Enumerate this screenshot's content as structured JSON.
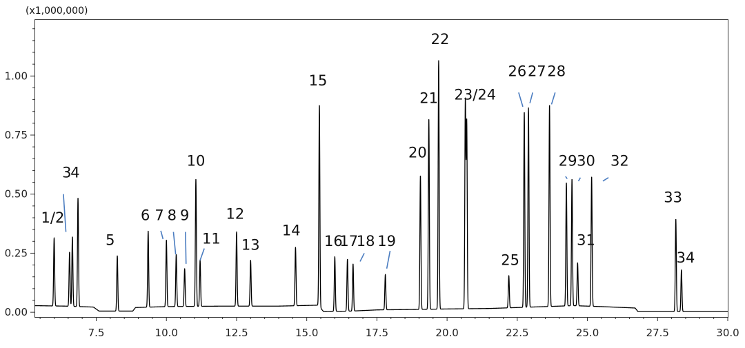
{
  "chart_data": {
    "type": "line",
    "y_multiplier_label": "(x1,000,000)",
    "xlim": [
      5.3,
      30.0
    ],
    "ylim": [
      -0.02,
      1.24
    ],
    "x_ticks": [
      7.5,
      10.0,
      12.5,
      15.0,
      17.5,
      20.0,
      22.5,
      25.0,
      27.5,
      30.0
    ],
    "x_tick_labels": [
      "7.5",
      "10.0",
      "12.5",
      "15.0",
      "17.5",
      "20.0",
      "22.5",
      "25.0",
      "27.5",
      "30.0"
    ],
    "y_ticks": [
      0.0,
      0.25,
      0.5,
      0.75,
      1.0
    ],
    "y_tick_labels": [
      "0.00",
      "0.25",
      "0.50",
      "0.75",
      "1.00"
    ],
    "grid": false,
    "line_color": "#000000",
    "annotation_color": "#4a7cc0",
    "baseline": [
      [
        5.3,
        0.028
      ],
      [
        6.4,
        0.026
      ],
      [
        7.4,
        0.022
      ],
      [
        7.6,
        0.005
      ],
      [
        8.8,
        0.005
      ],
      [
        8.9,
        0.02
      ],
      [
        10.0,
        0.024
      ],
      [
        12.0,
        0.026
      ],
      [
        14.0,
        0.026
      ],
      [
        15.4,
        0.03
      ],
      [
        15.6,
        0.003
      ],
      [
        16.6,
        0.005
      ],
      [
        17.5,
        0.01
      ],
      [
        18.9,
        0.012
      ],
      [
        20.0,
        0.014
      ],
      [
        21.5,
        0.016
      ],
      [
        23.0,
        0.022
      ],
      [
        24.5,
        0.028
      ],
      [
        25.5,
        0.024
      ],
      [
        26.7,
        0.018
      ],
      [
        26.8,
        0.003
      ],
      [
        30.0,
        0.003
      ]
    ],
    "peaks": [
      {
        "rt": 6.0,
        "height": 0.315
      },
      {
        "rt": 6.55,
        "height": 0.255
      },
      {
        "rt": 6.65,
        "height": 0.32
      },
      {
        "rt": 6.85,
        "height": 0.485
      },
      {
        "rt": 8.25,
        "height": 0.24
      },
      {
        "rt": 9.35,
        "height": 0.345
      },
      {
        "rt": 10.0,
        "height": 0.305
      },
      {
        "rt": 10.35,
        "height": 0.245
      },
      {
        "rt": 10.65,
        "height": 0.185
      },
      {
        "rt": 11.05,
        "height": 0.565
      },
      {
        "rt": 11.2,
        "height": 0.22
      },
      {
        "rt": 12.5,
        "height": 0.34
      },
      {
        "rt": 13.0,
        "height": 0.22
      },
      {
        "rt": 14.6,
        "height": 0.275
      },
      {
        "rt": 15.45,
        "height": 0.88
      },
      {
        "rt": 16.0,
        "height": 0.235
      },
      {
        "rt": 16.45,
        "height": 0.225
      },
      {
        "rt": 16.65,
        "height": 0.205
      },
      {
        "rt": 17.8,
        "height": 0.16
      },
      {
        "rt": 19.05,
        "height": 0.58
      },
      {
        "rt": 19.35,
        "height": 0.82
      },
      {
        "rt": 19.7,
        "height": 1.065
      },
      {
        "rt": 20.65,
        "height": 0.89
      },
      {
        "rt": 20.7,
        "height": 0.8
      },
      {
        "rt": 22.2,
        "height": 0.155
      },
      {
        "rt": 22.75,
        "height": 0.85
      },
      {
        "rt": 22.9,
        "height": 0.865
      },
      {
        "rt": 23.65,
        "height": 0.88
      },
      {
        "rt": 24.25,
        "height": 0.55
      },
      {
        "rt": 24.45,
        "height": 0.565
      },
      {
        "rt": 24.65,
        "height": 0.21
      },
      {
        "rt": 25.15,
        "height": 0.575
      },
      {
        "rt": 28.15,
        "height": 0.395
      },
      {
        "rt": 28.35,
        "height": 0.18
      }
    ],
    "annotations": [
      {
        "text": "1/2",
        "x": 5.95,
        "y": 0.38
      },
      {
        "text": "3",
        "x": 6.45,
        "y": 0.57
      },
      {
        "text": "4",
        "x": 6.75,
        "y": 0.57
      },
      {
        "text": "5",
        "x": 8.0,
        "y": 0.285
      },
      {
        "text": "6",
        "x": 9.25,
        "y": 0.39
      },
      {
        "text": "7",
        "x": 9.75,
        "y": 0.39
      },
      {
        "text": "8",
        "x": 10.2,
        "y": 0.39
      },
      {
        "text": "9",
        "x": 10.65,
        "y": 0.39
      },
      {
        "text": "10",
        "x": 11.05,
        "y": 0.62
      },
      {
        "text": "11",
        "x": 11.6,
        "y": 0.29
      },
      {
        "text": "12",
        "x": 12.45,
        "y": 0.395
      },
      {
        "text": "13",
        "x": 13.0,
        "y": 0.265
      },
      {
        "text": "14",
        "x": 14.45,
        "y": 0.325
      },
      {
        "text": "15",
        "x": 15.4,
        "y": 0.96
      },
      {
        "text": "16",
        "x": 15.95,
        "y": 0.28
      },
      {
        "text": "17",
        "x": 16.5,
        "y": 0.28
      },
      {
        "text": "18",
        "x": 17.1,
        "y": 0.28
      },
      {
        "text": "19",
        "x": 17.85,
        "y": 0.28
      },
      {
        "text": "20",
        "x": 18.95,
        "y": 0.655
      },
      {
        "text": "21",
        "x": 19.35,
        "y": 0.885
      },
      {
        "text": "22",
        "x": 19.75,
        "y": 1.135
      },
      {
        "text": "23/24",
        "x": 21.0,
        "y": 0.9
      },
      {
        "text": "25",
        "x": 22.25,
        "y": 0.2
      },
      {
        "text": "26",
        "x": 22.5,
        "y": 1.0
      },
      {
        "text": "27",
        "x": 23.2,
        "y": 1.0
      },
      {
        "text": "28",
        "x": 23.9,
        "y": 1.0
      },
      {
        "text": "29",
        "x": 24.3,
        "y": 0.62
      },
      {
        "text": "30",
        "x": 24.95,
        "y": 0.62
      },
      {
        "text": "31",
        "x": 24.95,
        "y": 0.285
      },
      {
        "text": "32",
        "x": 26.15,
        "y": 0.62
      },
      {
        "text": "33",
        "x": 28.05,
        "y": 0.465
      },
      {
        "text": "34",
        "x": 28.5,
        "y": 0.21
      }
    ],
    "leader_lines": [
      {
        "from": [
          6.33,
          0.5
        ],
        "to": [
          6.42,
          0.34
        ]
      },
      {
        "from": [
          9.8,
          0.345
        ],
        "to": [
          9.88,
          0.31
        ]
      },
      {
        "from": [
          10.25,
          0.34
        ],
        "to": [
          10.33,
          0.245
        ]
      },
      {
        "from": [
          10.68,
          0.34
        ],
        "to": [
          10.7,
          0.205
        ]
      },
      {
        "from": [
          11.35,
          0.27
        ],
        "to": [
          11.2,
          0.22
        ]
      },
      {
        "from": [
          17.05,
          0.25
        ],
        "to": [
          16.9,
          0.215
        ]
      },
      {
        "from": [
          17.97,
          0.26
        ],
        "to": [
          17.85,
          0.185
        ]
      },
      {
        "from": [
          22.55,
          0.93
        ],
        "to": [
          22.7,
          0.87
        ]
      },
      {
        "from": [
          23.05,
          0.93
        ],
        "to": [
          22.95,
          0.885
        ]
      },
      {
        "from": [
          23.85,
          0.93
        ],
        "to": [
          23.72,
          0.88
        ]
      },
      {
        "from": [
          24.22,
          0.575
        ],
        "to": [
          24.28,
          0.565
        ]
      },
      {
        "from": [
          24.75,
          0.57
        ],
        "to": [
          24.68,
          0.555
        ]
      },
      {
        "from": [
          25.75,
          0.57
        ],
        "to": [
          25.55,
          0.555
        ]
      }
    ]
  }
}
